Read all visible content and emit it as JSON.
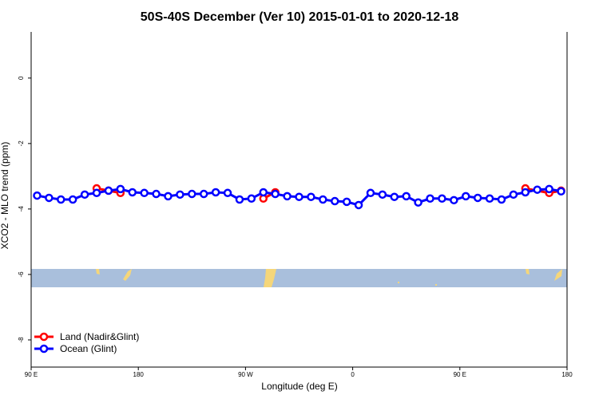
{
  "chart_data": {
    "type": "line",
    "title": "50S-40S December (Ver 10)   2015-01-01 to 2020-12-18",
    "xlabel": "Longitude (deg E)",
    "ylabel": "XCO2 - MLO trend (ppm)",
    "xlim": [
      90,
      540
    ],
    "xticks": [
      {
        "value": 90,
        "label": "90 E"
      },
      180,
      {
        "value": 270,
        "label": "90 W"
      },
      {
        "value": 360,
        "label": "0"
      },
      {
        "value": 450,
        "label": "90 E"
      },
      {
        "value": 540,
        "label": "180"
      }
    ],
    "ylim": [
      -8.83,
      1.41
    ],
    "yticks": [
      0,
      -2,
      -4,
      -6,
      -8
    ],
    "legend": "bottom-left",
    "series": [
      {
        "name": "Land (Nadir&Glint)",
        "color": "#ff0000",
        "x": [
          145,
          155,
          165,
          225,
          285,
          295,
          400,
          505,
          525,
          535
        ],
        "values": [
          -3.37,
          -3.44,
          -3.51,
          null,
          -3.68,
          -3.49,
          null,
          -3.37,
          -3.51,
          -3.44
        ]
      },
      {
        "name": "Ocean (Glint)",
        "color": "#0000ff",
        "x": [
          95,
          105,
          115,
          125,
          135,
          145,
          155,
          165,
          175,
          185,
          195,
          205,
          215,
          225,
          235,
          245,
          255,
          265,
          275,
          285,
          295,
          305,
          315,
          325,
          335,
          345,
          355,
          365,
          375,
          385,
          395,
          405,
          415,
          425,
          435,
          445,
          455,
          465,
          475,
          485,
          495,
          505,
          515,
          525,
          535
        ],
        "values": [
          -3.59,
          -3.66,
          -3.71,
          -3.71,
          -3.56,
          -3.51,
          -3.44,
          -3.39,
          -3.49,
          -3.51,
          -3.54,
          -3.61,
          -3.56,
          -3.54,
          -3.54,
          -3.49,
          -3.51,
          -3.71,
          -3.68,
          -3.49,
          -3.54,
          -3.61,
          -3.63,
          -3.63,
          -3.71,
          -3.76,
          -3.78,
          -3.88,
          -3.51,
          -3.56,
          -3.63,
          -3.61,
          -3.8,
          -3.68,
          -3.68,
          -3.73,
          -3.61,
          -3.66,
          -3.68,
          -3.71,
          -3.56,
          -3.49,
          -3.41,
          -3.39,
          -3.46
        ]
      }
    ]
  }
}
